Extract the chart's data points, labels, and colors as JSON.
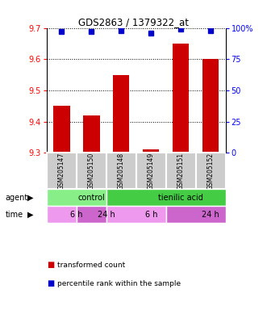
{
  "title": "GDS2863 / 1379322_at",
  "samples": [
    "GSM205147",
    "GSM205150",
    "GSM205148",
    "GSM205149",
    "GSM205151",
    "GSM205152"
  ],
  "bar_values": [
    9.45,
    9.42,
    9.55,
    9.31,
    9.65,
    9.6
  ],
  "percentile_values": [
    97,
    97,
    98,
    96,
    99,
    98
  ],
  "ylim_left": [
    9.3,
    9.7
  ],
  "ylim_right": [
    0,
    100
  ],
  "yticks_left": [
    9.3,
    9.4,
    9.5,
    9.6,
    9.7
  ],
  "yticks_right": [
    0,
    25,
    50,
    75,
    100
  ],
  "bar_color": "#cc0000",
  "dot_color": "#0000cc",
  "agent_labels": [
    {
      "text": "control",
      "start": 0,
      "end": 2,
      "color": "#88ee88"
    },
    {
      "text": "tienilic acid",
      "start": 2,
      "end": 6,
      "color": "#44cc44"
    }
  ],
  "time_labels": [
    {
      "text": "6 h",
      "start": 0,
      "end": 1,
      "color": "#ee99ee"
    },
    {
      "text": "24 h",
      "start": 1,
      "end": 2,
      "color": "#cc66cc"
    },
    {
      "text": "6 h",
      "start": 2,
      "end": 4,
      "color": "#ee99ee"
    },
    {
      "text": "24 h",
      "start": 4,
      "end": 6,
      "color": "#cc66cc"
    }
  ],
  "label_agent": "agent",
  "label_time": "time",
  "legend_red": "transformed count",
  "legend_blue": "percentile rank within the sample",
  "n_samples": 6,
  "bar_width": 0.55,
  "sample_bg_color": "#cccccc",
  "ybaseline": 9.3,
  "right_tick_labels": [
    "0",
    "25",
    "50",
    "75",
    "100%"
  ]
}
